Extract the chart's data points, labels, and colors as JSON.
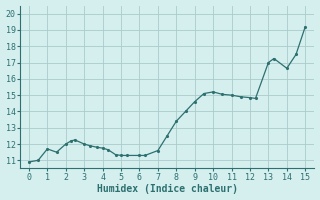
{
  "markers_x": [
    0,
    0.5,
    1,
    1.5,
    2,
    2.3,
    2.5,
    3,
    3.3,
    3.7,
    4,
    4.3,
    4.7,
    5,
    5.3,
    6,
    6.3,
    7,
    7.5,
    8,
    8.5,
    9,
    9.5,
    10,
    10.5,
    11,
    11.5,
    12,
    12.3,
    13,
    13.3,
    14,
    14.5,
    15
  ],
  "markers_y": [
    10.9,
    11.0,
    11.7,
    11.5,
    12.0,
    12.2,
    12.25,
    12.0,
    11.9,
    11.8,
    11.75,
    11.65,
    11.35,
    11.3,
    11.3,
    11.3,
    11.3,
    11.6,
    12.5,
    13.4,
    14.0,
    14.6,
    15.1,
    15.2,
    15.05,
    15.0,
    14.9,
    14.85,
    14.8,
    17.0,
    17.25,
    16.65,
    17.5,
    19.2
  ],
  "xlabel": "Humidex (Indice chaleur)",
  "ylim": [
    10.5,
    20.5
  ],
  "xlim": [
    -0.5,
    15.5
  ],
  "yticks": [
    11,
    12,
    13,
    14,
    15,
    16,
    17,
    18,
    19,
    20
  ],
  "xticks": [
    0,
    1,
    2,
    3,
    4,
    5,
    6,
    7,
    8,
    9,
    10,
    11,
    12,
    13,
    14,
    15
  ],
  "line_color": "#2d7070",
  "marker_color": "#2d7070",
  "bg_color": "#d5eeee",
  "grid_color": "#aacccc",
  "axis_color": "#2d7070",
  "xlabel_fontsize": 7,
  "tick_fontsize": 6,
  "linewidth": 0.9,
  "markersize": 2.5
}
